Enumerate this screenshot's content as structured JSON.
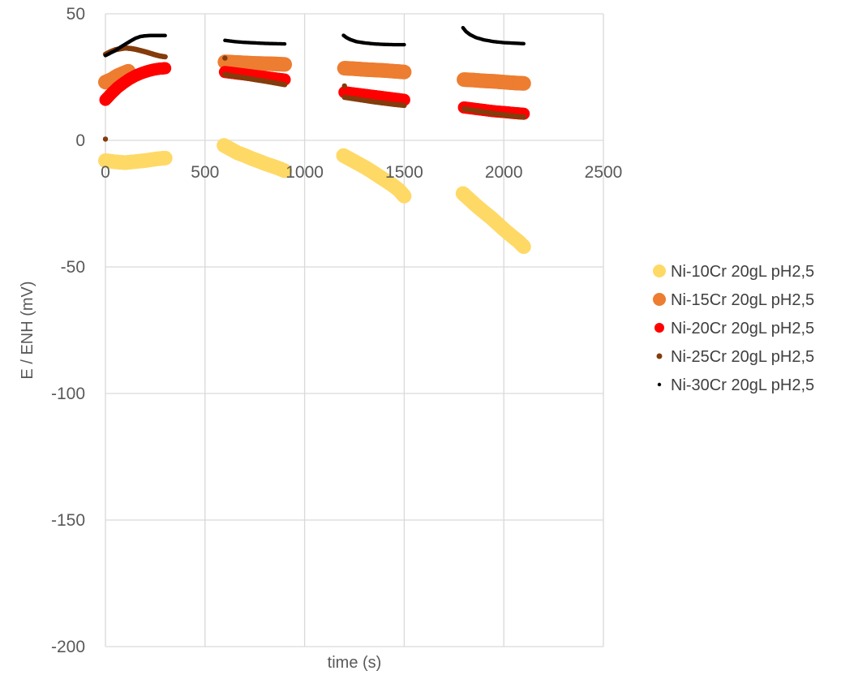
{
  "chart_data": {
    "type": "scatter",
    "title": "",
    "xlabel": "time (s)",
    "ylabel": "E / ENH (mV)",
    "xlim": [
      0,
      2500
    ],
    "ylim": [
      -200,
      50
    ],
    "xticks": [
      0,
      500,
      1000,
      1500,
      2000,
      2500
    ],
    "yticks": [
      -200,
      -150,
      -100,
      -50,
      0,
      50
    ],
    "grid": true,
    "legend_position": "right",
    "series": [
      {
        "name": "Ni-10Cr 20gL pH2,5",
        "color": "#FFD966",
        "marker_size": "large",
        "segments": [
          {
            "points": [
              [
                0,
                -8
              ],
              [
                50,
                -8.5
              ],
              [
                100,
                -8.8
              ],
              [
                150,
                -8.4
              ],
              [
                200,
                -8
              ],
              [
                250,
                -7.4
              ],
              [
                300,
                -7
              ]
            ]
          },
          {
            "points": [
              [
                595,
                -2
              ],
              [
                630,
                -3.5
              ],
              [
                665,
                -5
              ],
              [
                700,
                -6
              ],
              [
                735,
                -7.2
              ],
              [
                770,
                -8.2
              ],
              [
                805,
                -9.3
              ],
              [
                840,
                -10.2
              ],
              [
                875,
                -11.2
              ],
              [
                900,
                -12
              ]
            ]
          },
          {
            "points": [
              [
                1195,
                -6
              ],
              [
                1230,
                -7.5
              ],
              [
                1265,
                -9
              ],
              [
                1300,
                -10.5
              ],
              [
                1335,
                -12.2
              ],
              [
                1370,
                -14
              ],
              [
                1405,
                -15.8
              ],
              [
                1440,
                -17.6
              ],
              [
                1475,
                -19.7
              ],
              [
                1500,
                -22
              ]
            ]
          },
          {
            "points": [
              [
                1795,
                -21
              ],
              [
                1830,
                -23.5
              ],
              [
                1865,
                -26
              ],
              [
                1900,
                -28.3
              ],
              [
                1935,
                -30.5
              ],
              [
                1970,
                -33
              ],
              [
                2005,
                -35.5
              ],
              [
                2040,
                -37.8
              ],
              [
                2075,
                -40
              ],
              [
                2100,
                -42
              ]
            ]
          }
        ]
      },
      {
        "name": "Ni-15Cr 20gL pH2,5",
        "color": "#ED7D31",
        "marker_size": "large",
        "segments": [
          {
            "points": [
              [
                0,
                23
              ],
              [
                30,
                24
              ],
              [
                60,
                25.5
              ],
              [
                90,
                26.5
              ],
              [
                115,
                27.3
              ]
            ]
          },
          {
            "points": [
              [
                600,
                31
              ],
              [
                650,
                30.8
              ],
              [
                700,
                30.6
              ],
              [
                750,
                30.4
              ],
              [
                800,
                30.3
              ],
              [
                850,
                30.2
              ],
              [
                900,
                30
              ]
            ]
          },
          {
            "points": [
              [
                1200,
                28.5
              ],
              [
                1250,
                28.3
              ],
              [
                1300,
                28
              ],
              [
                1350,
                27.8
              ],
              [
                1400,
                27.6
              ],
              [
                1450,
                27.3
              ],
              [
                1500,
                27
              ]
            ]
          },
          {
            "points": [
              [
                1800,
                24
              ],
              [
                1850,
                23.8
              ],
              [
                1900,
                23.5
              ],
              [
                1950,
                23.3
              ],
              [
                2000,
                23
              ],
              [
                2050,
                22.7
              ],
              [
                2100,
                22.5
              ]
            ]
          }
        ]
      },
      {
        "name": "Ni-20Cr 20gL pH2,5",
        "color": "#FF0000",
        "marker_size": "medium",
        "segments": [
          {
            "points": [
              [
                0,
                16
              ],
              [
                30,
                18.5
              ],
              [
                60,
                20.8
              ],
              [
                90,
                22.6
              ],
              [
                120,
                24.2
              ],
              [
                150,
                25.5
              ],
              [
                180,
                26.5
              ],
              [
                210,
                27.3
              ],
              [
                240,
                27.9
              ],
              [
                270,
                28.3
              ],
              [
                300,
                28.5
              ]
            ]
          },
          {
            "points": [
              [
                600,
                27
              ],
              [
                650,
                26.5
              ],
              [
                700,
                26
              ],
              [
                750,
                25.5
              ],
              [
                800,
                25
              ],
              [
                850,
                24.5
              ],
              [
                900,
                24
              ]
            ]
          },
          {
            "points": [
              [
                1200,
                19
              ],
              [
                1250,
                18.5
              ],
              [
                1300,
                18
              ],
              [
                1350,
                17.5
              ],
              [
                1400,
                17
              ],
              [
                1450,
                16.5
              ],
              [
                1500,
                16
              ]
            ]
          },
          {
            "points": [
              [
                1800,
                13
              ],
              [
                1850,
                12.5
              ],
              [
                1900,
                12
              ],
              [
                1950,
                11.5
              ],
              [
                2000,
                11.2
              ],
              [
                2050,
                10.8
              ],
              [
                2100,
                10.5
              ]
            ]
          }
        ]
      },
      {
        "name": "Ni-25Cr 20gL pH2,5",
        "color": "#843C0C",
        "marker_size": "small",
        "segments": [
          {
            "points": [
              [
                0,
                0.5
              ]
            ]
          },
          {
            "points": [
              [
                0,
                34
              ],
              [
                25,
                35
              ],
              [
                50,
                35.8
              ],
              [
                75,
                36.2
              ],
              [
                100,
                36.5
              ],
              [
                125,
                36.3
              ],
              [
                150,
                36
              ],
              [
                175,
                35.5
              ],
              [
                200,
                35
              ],
              [
                225,
                34.4
              ],
              [
                250,
                33.8
              ],
              [
                275,
                33.3
              ],
              [
                300,
                33
              ]
            ]
          },
          {
            "points": [
              [
                600,
                32.5
              ]
            ]
          },
          {
            "points": [
              [
                600,
                26
              ],
              [
                650,
                25.3
              ],
              [
                700,
                24.7
              ],
              [
                750,
                24
              ],
              [
                800,
                23.4
              ],
              [
                850,
                22.7
              ],
              [
                900,
                22
              ]
            ]
          },
          {
            "points": [
              [
                1200,
                21.5
              ]
            ]
          },
          {
            "points": [
              [
                1200,
                17
              ],
              [
                1250,
                16.4
              ],
              [
                1300,
                15.8
              ],
              [
                1350,
                15.2
              ],
              [
                1400,
                14.7
              ],
              [
                1450,
                14.2
              ],
              [
                1500,
                13.8
              ]
            ]
          },
          {
            "points": [
              [
                1800,
                12.5
              ],
              [
                1850,
                11.8
              ],
              [
                1900,
                11.2
              ],
              [
                1950,
                10.6
              ],
              [
                2000,
                10.1
              ],
              [
                2050,
                9.6
              ],
              [
                2100,
                9.2
              ]
            ]
          }
        ]
      },
      {
        "name": "Ni-30Cr 20gL pH2,5",
        "color": "#000000",
        "marker_size": "tiny",
        "segments": [
          {
            "points": [
              [
                0,
                33.5
              ],
              [
                25,
                34.5
              ],
              [
                50,
                35.5
              ],
              [
                75,
                36.8
              ],
              [
                100,
                38
              ],
              [
                125,
                39.2
              ],
              [
                150,
                40.3
              ],
              [
                175,
                41
              ],
              [
                200,
                41.3
              ],
              [
                225,
                41.4
              ],
              [
                250,
                41.4
              ],
              [
                275,
                41.4
              ],
              [
                300,
                41.4
              ]
            ]
          },
          {
            "points": [
              [
                600,
                39.5
              ],
              [
                650,
                39
              ],
              [
                700,
                38.7
              ],
              [
                750,
                38.5
              ],
              [
                800,
                38.3
              ],
              [
                850,
                38.2
              ],
              [
                900,
                38.1
              ]
            ]
          },
          {
            "points": [
              [
                1195,
                41.5
              ],
              [
                1210,
                40.6
              ],
              [
                1230,
                39.8
              ],
              [
                1260,
                39
              ],
              [
                1300,
                38.5
              ],
              [
                1350,
                38.1
              ],
              [
                1400,
                37.9
              ],
              [
                1450,
                37.8
              ],
              [
                1500,
                37.8
              ]
            ]
          },
          {
            "points": [
              [
                1795,
                44.5
              ],
              [
                1810,
                43
              ],
              [
                1830,
                41.8
              ],
              [
                1860,
                40.6
              ],
              [
                1900,
                39.7
              ],
              [
                1950,
                39
              ],
              [
                2000,
                38.6
              ],
              [
                2050,
                38.4
              ],
              [
                2100,
                38.2
              ]
            ]
          }
        ]
      }
    ]
  }
}
